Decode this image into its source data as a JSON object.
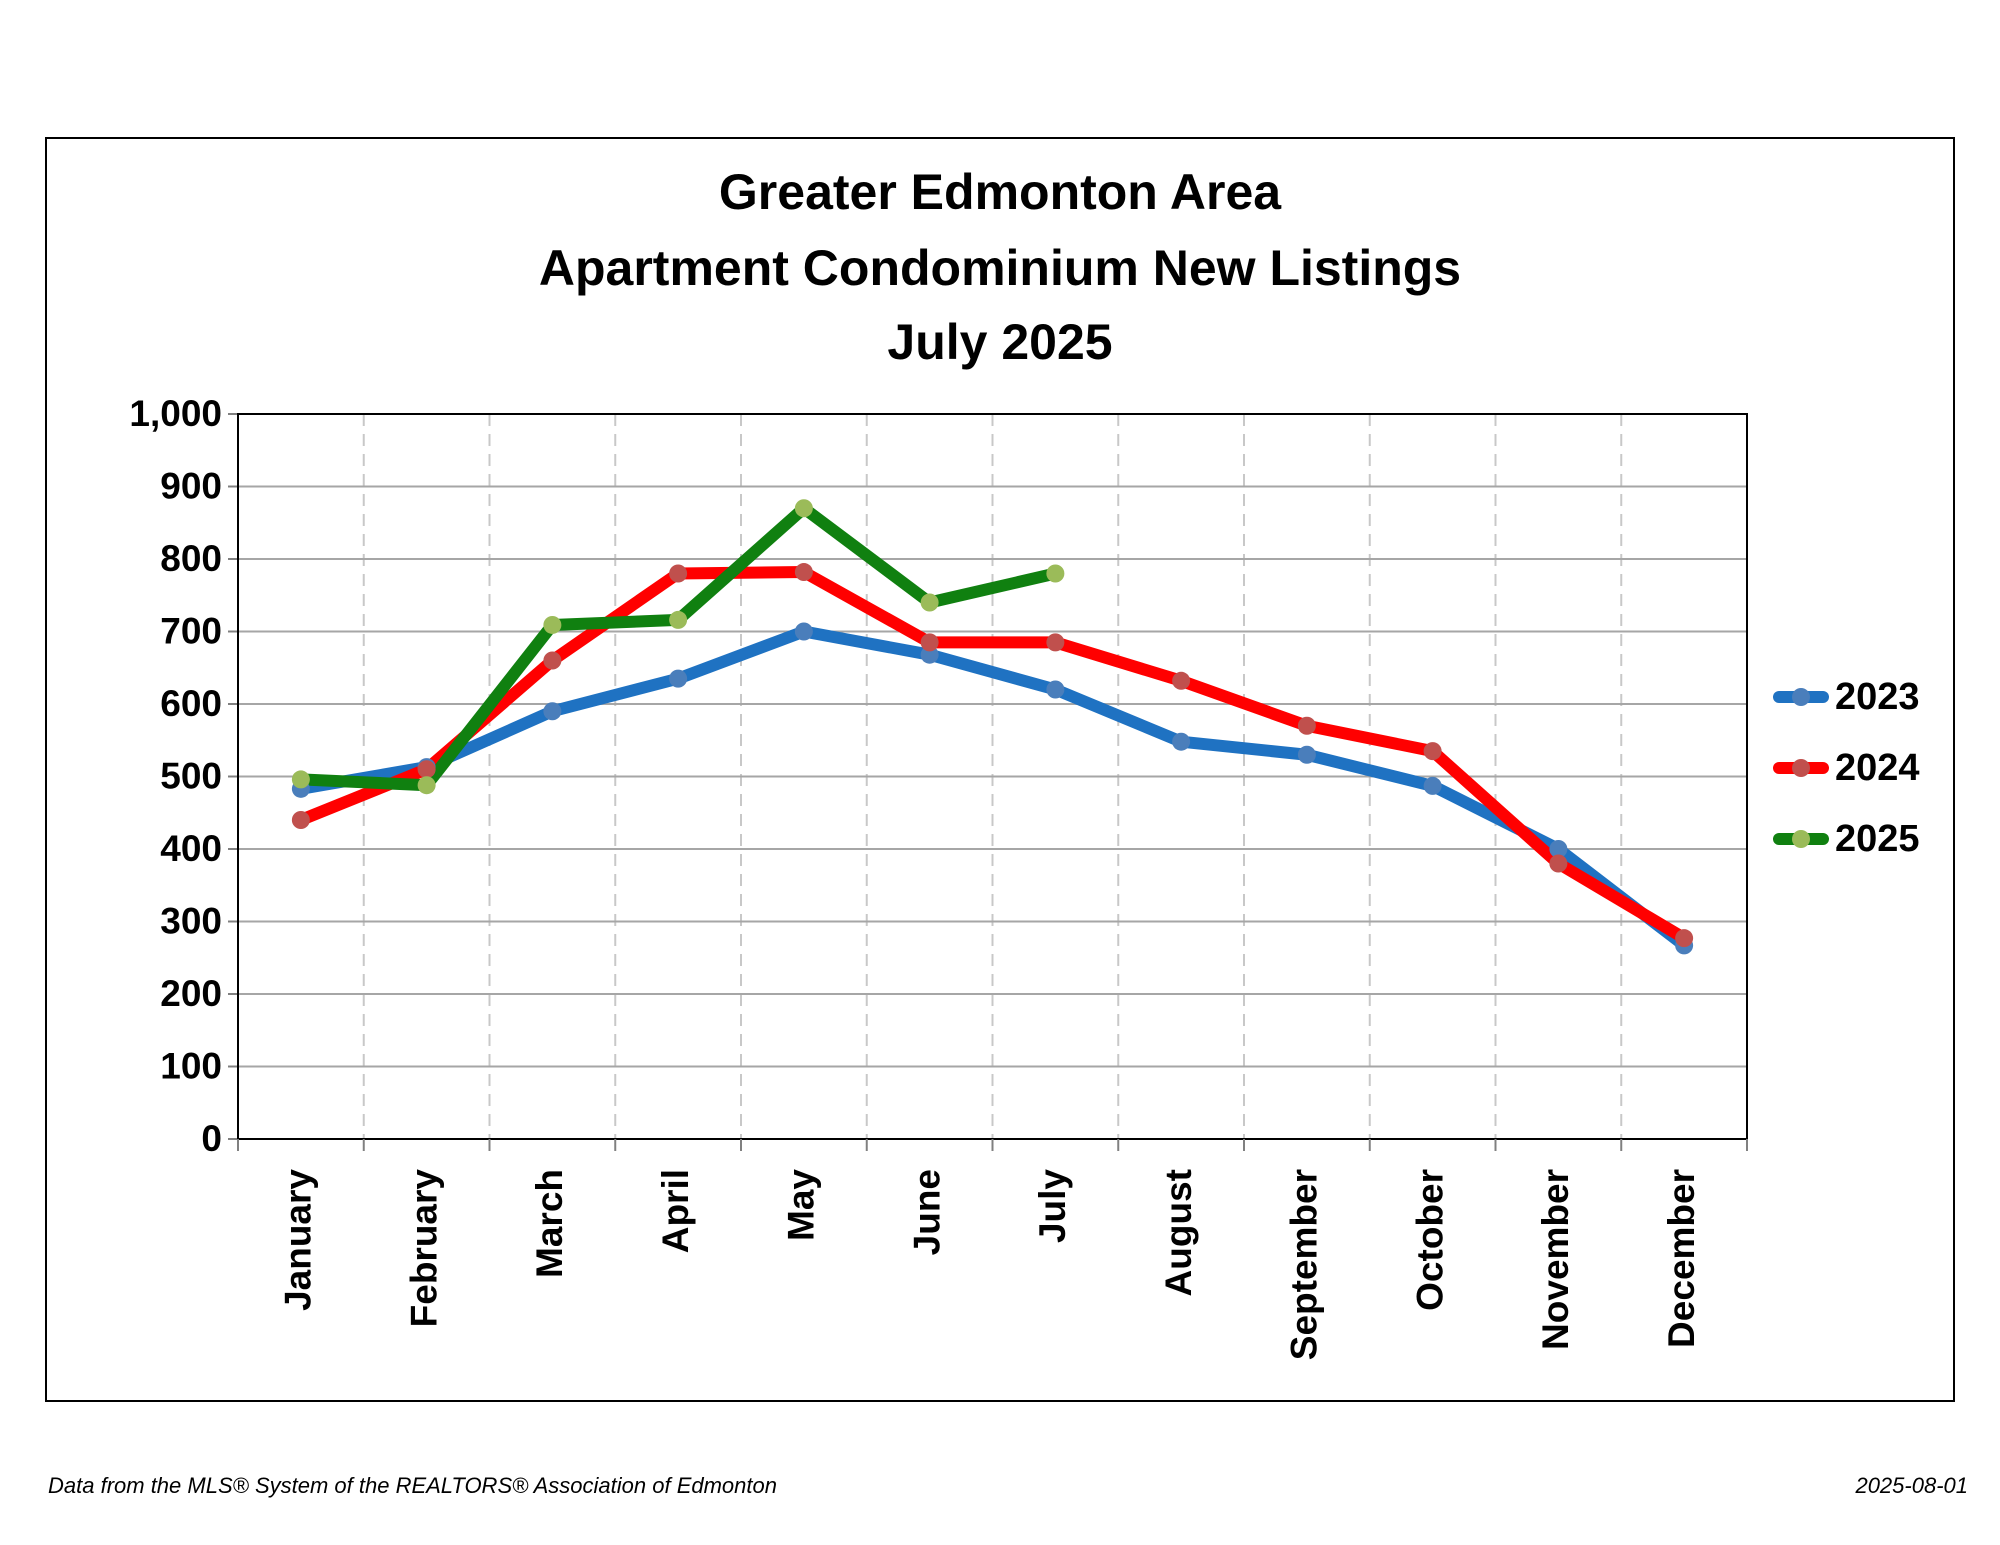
{
  "chart_data": {
    "type": "line",
    "title": [
      "Greater Edmonton Area",
      "Apartment Condominium New Listings",
      "July 2025"
    ],
    "categories": [
      "January",
      "February",
      "March",
      "April",
      "May",
      "June",
      "July",
      "August",
      "September",
      "October",
      "November",
      "December"
    ],
    "series": [
      {
        "name": "2023",
        "color": "#1f72c2",
        "marker_color": "#4a7ebb",
        "values": [
          483,
          513,
          590,
          635,
          700,
          668,
          620,
          548,
          530,
          487,
          400,
          267
        ]
      },
      {
        "name": "2024",
        "color": "#ff0000",
        "marker_color": "#c0504d",
        "values": [
          440,
          510,
          660,
          780,
          782,
          685,
          685,
          632,
          570,
          535,
          380,
          277
        ]
      },
      {
        "name": "2025",
        "color": "#108010",
        "marker_color": "#9bbb59",
        "values": [
          496,
          488,
          709,
          716,
          870,
          740,
          780,
          null,
          null,
          null,
          null,
          null
        ]
      }
    ],
    "ylim": [
      0,
      1000
    ],
    "yticks": [
      0,
      100,
      200,
      300,
      400,
      500,
      600,
      700,
      800,
      900,
      {
        "value": 1000,
        "label": "1,000"
      }
    ],
    "grid": true,
    "legend": "right",
    "source": "Data from the MLS® System of the REALTORS® Association of Edmonton",
    "date": "2025-08-01"
  }
}
